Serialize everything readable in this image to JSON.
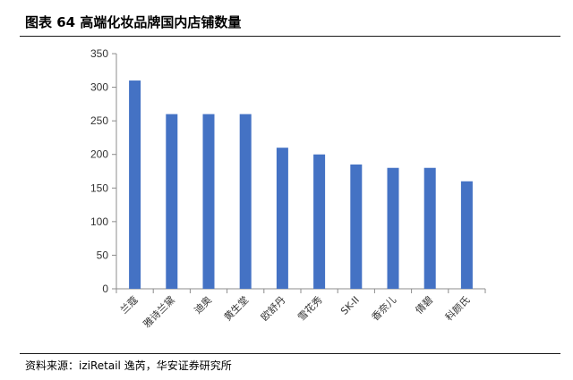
{
  "figure": {
    "title": "图表 64  高端化妆品牌国内店铺数量",
    "source": "资料来源：iziRetail 逸芮，华安证券研究所"
  },
  "chart_data": {
    "type": "bar",
    "categories": [
      "兰蔻",
      "雅诗兰黛",
      "迪奥",
      "黄生堂",
      "欧舒丹",
      "雪花秀",
      "SK-II",
      "香奈儿",
      "倩碧",
      "科颜氏"
    ],
    "values": [
      310,
      260,
      260,
      260,
      210,
      200,
      185,
      180,
      180,
      160
    ],
    "ylim": [
      0,
      350
    ],
    "yticks": [
      0,
      50,
      100,
      150,
      200,
      250,
      300,
      350
    ],
    "grid": false,
    "legend": "none",
    "colors": {
      "bar": "#4472C4",
      "axis": "#8c8c8c"
    }
  }
}
